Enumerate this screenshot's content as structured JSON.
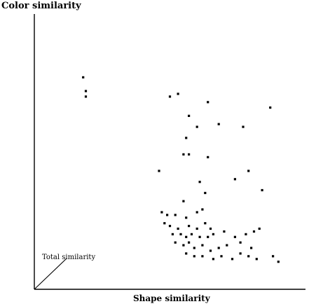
{
  "chart_data": {
    "type": "scatter",
    "title": "",
    "ylabel": "Color similarity",
    "xlabel": "Shape similarity",
    "annotation": "Total similarity",
    "xlim": [
      0,
      1
    ],
    "ylim": [
      0,
      1
    ],
    "grid": false,
    "series": [
      {
        "points": [
          [
            0.18,
            0.77
          ],
          [
            0.19,
            0.72
          ],
          [
            0.19,
            0.7
          ],
          [
            0.5,
            0.7
          ],
          [
            0.53,
            0.71
          ],
          [
            0.64,
            0.68
          ],
          [
            0.87,
            0.66
          ],
          [
            0.57,
            0.63
          ],
          [
            0.6,
            0.59
          ],
          [
            0.68,
            0.6
          ],
          [
            0.77,
            0.59
          ],
          [
            0.56,
            0.55
          ],
          [
            0.55,
            0.49
          ],
          [
            0.57,
            0.49
          ],
          [
            0.64,
            0.48
          ],
          [
            0.46,
            0.43
          ],
          [
            0.61,
            0.39
          ],
          [
            0.74,
            0.4
          ],
          [
            0.79,
            0.43
          ],
          [
            0.84,
            0.36
          ],
          [
            0.63,
            0.35
          ],
          [
            0.55,
            0.32
          ],
          [
            0.47,
            0.28
          ],
          [
            0.49,
            0.27
          ],
          [
            0.52,
            0.27
          ],
          [
            0.56,
            0.26
          ],
          [
            0.6,
            0.28
          ],
          [
            0.62,
            0.29
          ],
          [
            0.48,
            0.24
          ],
          [
            0.5,
            0.23
          ],
          [
            0.53,
            0.22
          ],
          [
            0.57,
            0.23
          ],
          [
            0.6,
            0.22
          ],
          [
            0.63,
            0.24
          ],
          [
            0.65,
            0.22
          ],
          [
            0.51,
            0.2
          ],
          [
            0.54,
            0.2
          ],
          [
            0.56,
            0.19
          ],
          [
            0.58,
            0.2
          ],
          [
            0.61,
            0.19
          ],
          [
            0.64,
            0.19
          ],
          [
            0.66,
            0.2
          ],
          [
            0.7,
            0.21
          ],
          [
            0.74,
            0.19
          ],
          [
            0.78,
            0.2
          ],
          [
            0.81,
            0.21
          ],
          [
            0.83,
            0.22
          ],
          [
            0.52,
            0.17
          ],
          [
            0.55,
            0.16
          ],
          [
            0.57,
            0.17
          ],
          [
            0.59,
            0.15
          ],
          [
            0.62,
            0.16
          ],
          [
            0.65,
            0.14
          ],
          [
            0.68,
            0.15
          ],
          [
            0.71,
            0.16
          ],
          [
            0.76,
            0.17
          ],
          [
            0.8,
            0.15
          ],
          [
            0.56,
            0.13
          ],
          [
            0.59,
            0.12
          ],
          [
            0.62,
            0.12
          ],
          [
            0.66,
            0.11
          ],
          [
            0.69,
            0.12
          ],
          [
            0.73,
            0.11
          ],
          [
            0.76,
            0.13
          ],
          [
            0.79,
            0.12
          ],
          [
            0.82,
            0.11
          ],
          [
            0.88,
            0.12
          ],
          [
            0.9,
            0.1
          ]
        ]
      }
    ]
  }
}
